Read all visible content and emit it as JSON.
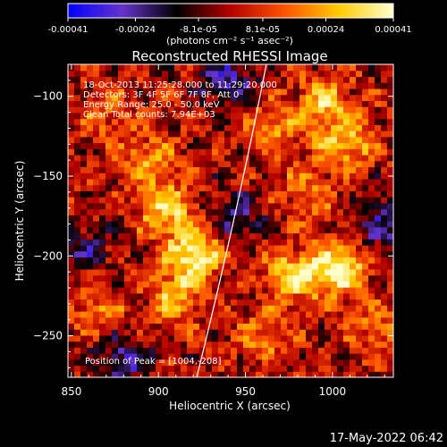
{
  "chart_data": {
    "type": "heatmap",
    "title": "Reconstructed RHESSI Image",
    "xlabel": "Heliocentric X (arcsec)",
    "ylabel": "Heliocentric Y (arcsec)",
    "xlim": [
      848,
      1035
    ],
    "ylim": [
      -276,
      -80
    ],
    "x_ticks": [
      850,
      900,
      950,
      1000
    ],
    "y_ticks": [
      -100,
      -150,
      -200,
      -250
    ],
    "colorbar": {
      "label": "(photons cm⁻² s⁻¹ asec⁻²)",
      "tick_labels": [
        "-0.00041",
        "-0.00024",
        "-8.1e-05",
        "8.1e-05",
        "0.00024",
        "0.00041"
      ],
      "range": [
        -0.00041,
        0.00041
      ],
      "colormap": [
        "#0000ff",
        "#6633cc",
        "#000000",
        "#b40000",
        "#ff5500",
        "#ffcc00",
        "#ffffd0"
      ]
    },
    "info": [
      "18-Oct-2013 11:25:28.000 to 11:29:20.000",
      "Detectors: 3F 4F 5F 6F 7F 8F, Att 0",
      "Energy Range: 25.0 - 50.0 keV",
      "Clean    Total counts: 7.94E+03"
    ],
    "peak_label": "Position of Peak = [1004,-208]",
    "peak": [
      1004,
      -208
    ],
    "sources": [
      {
        "x": 920,
        "y": -198,
        "amp": 0.0004
      },
      {
        "x": 905,
        "y": -170,
        "amp": 0.0003
      },
      {
        "x": 910,
        "y": -225,
        "amp": 0.00026
      },
      {
        "x": 895,
        "y": -140,
        "amp": 0.00022
      },
      {
        "x": 978,
        "y": -212,
        "amp": 0.00034
      },
      {
        "x": 1004,
        "y": -208,
        "amp": 0.00041
      },
      {
        "x": 1008,
        "y": -128,
        "amp": 0.0003
      },
      {
        "x": 995,
        "y": -102,
        "amp": 0.00026
      },
      {
        "x": 968,
        "y": -120,
        "amp": 0.0002
      },
      {
        "x": 985,
        "y": -160,
        "amp": 0.00018
      },
      {
        "x": 960,
        "y": -250,
        "amp": 0.00016
      },
      {
        "x": 865,
        "y": -235,
        "amp": 0.00016
      },
      {
        "x": 870,
        "y": -110,
        "amp": 0.00014
      },
      {
        "x": 1025,
        "y": -245,
        "amp": 0.00016
      },
      {
        "x": 945,
        "y": -175,
        "amp": -0.0002
      },
      {
        "x": 880,
        "y": -265,
        "amp": -0.00024
      },
      {
        "x": 1030,
        "y": -180,
        "amp": -0.00022
      },
      {
        "x": 940,
        "y": -90,
        "amp": -0.00026
      },
      {
        "x": 855,
        "y": -195,
        "amp": -0.00018
      }
    ]
  },
  "timestamp": "17-May-2022 06:42"
}
